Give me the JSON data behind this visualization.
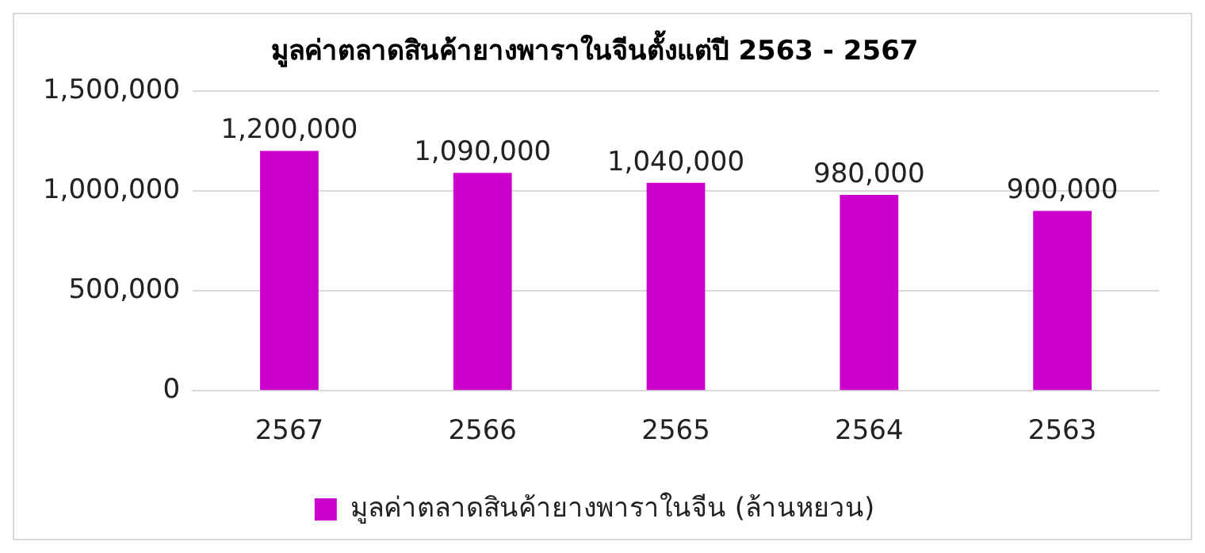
{
  "chart_data": {
    "type": "bar",
    "title": "มูลค่าตลาดสินค้ายางพาราในจีนตั้งแต่ปี 2563 - 2567",
    "categories": [
      "2567",
      "2566",
      "2565",
      "2564",
      "2563"
    ],
    "series": [
      {
        "name": "มูลค่าตลาดสินค้ายางพาราในจีน (ล้านหยวน)",
        "color": "#cc00cc",
        "values": [
          1200000,
          1090000,
          1040000,
          980000,
          900000
        ],
        "value_labels": [
          "1,200,000",
          "1,090,000",
          "1,040,000",
          "980,000",
          "900,000"
        ]
      }
    ],
    "ylim": [
      0,
      1500000
    ],
    "yticks": [
      {
        "value": 0,
        "label": "0"
      },
      {
        "value": 500000,
        "label": "500,000"
      },
      {
        "value": 1000000,
        "label": "1,000,000"
      },
      {
        "value": 1500000,
        "label": "1,500,000"
      }
    ],
    "grid": "y",
    "legend": "bottom"
  }
}
